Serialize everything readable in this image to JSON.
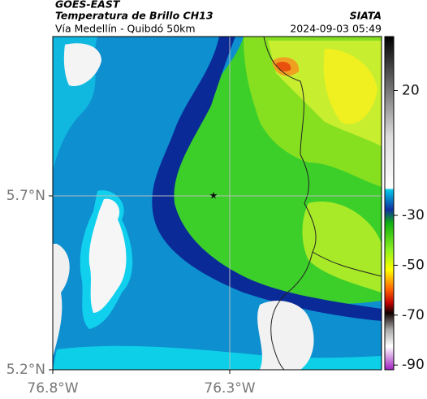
{
  "header": {
    "source": "GOES-EAST",
    "title": "Temperatura de Brillo CH13",
    "subtitle": "Vía Medellín - Quibdó 50km",
    "org": "SIATA",
    "timestamp": "2024-09-03 05:49"
  },
  "map": {
    "lat_labels": [
      "5.7°N",
      "5.2°N"
    ],
    "lon_labels": [
      "76.8°W",
      "76.3°W"
    ]
  },
  "colorbar": {
    "ticks": [
      20,
      -30,
      -50,
      -70,
      -90
    ]
  }
}
